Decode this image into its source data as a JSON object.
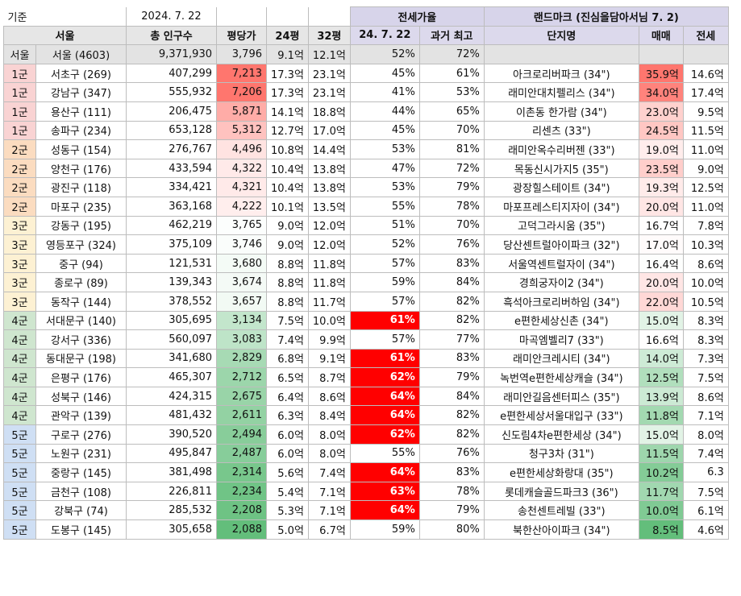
{
  "meta": {
    "top_label": "기준",
    "date": "2024. 7. 22",
    "jeonse_title": "전세가율",
    "landmark_title": "랜드마크 (진심을담아서님 7. 2)"
  },
  "headers": {
    "region": "서울",
    "households": "총 인구수",
    "price_per_pyeong": "평당가",
    "p24": "24평",
    "p32": "32평",
    "ratio_now": "24. 7. 22",
    "ratio_max": "과거 최고",
    "complex": "단지명",
    "sale": "매매",
    "jeonse": "전세"
  },
  "colors": {
    "grade_1": "#f9d3d3",
    "grade_2": "#fbdcc0",
    "grade_3": "#fdf1d3",
    "grade_4": "#cfe6cf",
    "grade_5": "#cfdff4",
    "highlight_red": "#ff0000"
  },
  "summary": {
    "grade": "서울",
    "region": "서울 (4603)",
    "population": "9,371,930",
    "price": "3,796",
    "p24": "9.1억",
    "p32": "12.1억",
    "ratio_now": "52%",
    "ratio_max": "72%"
  },
  "rows": [
    {
      "grade": "1군",
      "g": 1,
      "region": "서초구 (269)",
      "population": "407,299",
      "price": "7,213",
      "p24": "17.3억",
      "p32": "23.1억",
      "ratio_now": "45%",
      "ratio_max": "61%",
      "complex": "아크로리버파크 (34\")",
      "sale": "35.9억",
      "jeonse": "14.6억"
    },
    {
      "grade": "1군",
      "g": 1,
      "region": "강남구 (347)",
      "population": "555,932",
      "price": "7,206",
      "p24": "17.3억",
      "p32": "23.1억",
      "ratio_now": "41%",
      "ratio_max": "53%",
      "complex": "래미안대치펠리스 (34\")",
      "sale": "34.0억",
      "jeonse": "17.4억"
    },
    {
      "grade": "1군",
      "g": 1,
      "region": "용산구 (111)",
      "population": "206,475",
      "price": "5,871",
      "p24": "14.1억",
      "p32": "18.8억",
      "ratio_now": "44%",
      "ratio_max": "65%",
      "complex": "이촌동 한가람 (34\")",
      "sale": "23.0억",
      "jeonse": "9.5억"
    },
    {
      "grade": "1군",
      "g": 1,
      "region": "송파구 (234)",
      "population": "653,128",
      "price": "5,312",
      "p24": "12.7억",
      "p32": "17.0억",
      "ratio_now": "45%",
      "ratio_max": "70%",
      "complex": "리센츠 (33\")",
      "sale": "24.5억",
      "jeonse": "11.5억"
    },
    {
      "grade": "2군",
      "g": 2,
      "region": "성동구 (154)",
      "population": "276,767",
      "price": "4,496",
      "p24": "10.8억",
      "p32": "14.4억",
      "ratio_now": "53%",
      "ratio_max": "81%",
      "complex": "래미안옥수리버젠 (33\")",
      "sale": "19.0억",
      "jeonse": "11.0억"
    },
    {
      "grade": "2군",
      "g": 2,
      "region": "양천구 (176)",
      "population": "433,594",
      "price": "4,322",
      "p24": "10.4억",
      "p32": "13.8억",
      "ratio_now": "47%",
      "ratio_max": "72%",
      "complex": "목동신시가지5 (35\")",
      "sale": "23.5억",
      "jeonse": "9.0억"
    },
    {
      "grade": "2군",
      "g": 2,
      "region": "광진구 (118)",
      "population": "334,421",
      "price": "4,321",
      "p24": "10.4억",
      "p32": "13.8억",
      "ratio_now": "53%",
      "ratio_max": "79%",
      "complex": "광장힐스테이트 (34\")",
      "sale": "19.3억",
      "jeonse": "12.5억"
    },
    {
      "grade": "2군",
      "g": 2,
      "region": "마포구 (235)",
      "population": "363,168",
      "price": "4,222",
      "p24": "10.1억",
      "p32": "13.5억",
      "ratio_now": "55%",
      "ratio_max": "78%",
      "complex": "마포프레스티지자이 (34\")",
      "sale": "20.0억",
      "jeonse": "11.0억"
    },
    {
      "grade": "3군",
      "g": 3,
      "region": "강동구 (195)",
      "population": "462,219",
      "price": "3,765",
      "p24": "9.0억",
      "p32": "12.0억",
      "ratio_now": "51%",
      "ratio_max": "70%",
      "complex": "고덕그라시움 (35\")",
      "sale": "16.7억",
      "jeonse": "7.8억"
    },
    {
      "grade": "3군",
      "g": 3,
      "region": "영등포구 (324)",
      "population": "375,109",
      "price": "3,746",
      "p24": "9.0억",
      "p32": "12.0억",
      "ratio_now": "52%",
      "ratio_max": "76%",
      "complex": "당산센트럴아이파크 (32\")",
      "sale": "17.0억",
      "jeonse": "10.3억"
    },
    {
      "grade": "3군",
      "g": 3,
      "region": "중구 (94)",
      "population": "121,531",
      "price": "3,680",
      "p24": "8.8억",
      "p32": "11.8억",
      "ratio_now": "57%",
      "ratio_max": "83%",
      "complex": "서울역센트럴자이 (34\")",
      "sale": "16.4억",
      "jeonse": "8.6억"
    },
    {
      "grade": "3군",
      "g": 3,
      "region": "종로구 (89)",
      "population": "139,343",
      "price": "3,674",
      "p24": "8.8억",
      "p32": "11.8억",
      "ratio_now": "59%",
      "ratio_max": "84%",
      "complex": "경희궁자이2 (34\")",
      "sale": "20.0억",
      "jeonse": "10.0억"
    },
    {
      "grade": "3군",
      "g": 3,
      "region": "동작구 (144)",
      "population": "378,552",
      "price": "3,657",
      "p24": "8.8억",
      "p32": "11.7억",
      "ratio_now": "57%",
      "ratio_max": "82%",
      "complex": "흑석아크로리버하임 (34\")",
      "sale": "22.0억",
      "jeonse": "10.5억"
    },
    {
      "grade": "4군",
      "g": 4,
      "region": "서대문구 (140)",
      "population": "305,695",
      "price": "3,134",
      "p24": "7.5억",
      "p32": "10.0억",
      "ratio_now": "61%",
      "ratio_max": "82%",
      "complex": "e편한세상신촌 (34\")",
      "sale": "15.0억",
      "jeonse": "8.3억"
    },
    {
      "grade": "4군",
      "g": 4,
      "region": "강서구 (336)",
      "population": "560,097",
      "price": "3,083",
      "p24": "7.4억",
      "p32": "9.9억",
      "ratio_now": "57%",
      "ratio_max": "77%",
      "complex": "마곡엠벨리7 (33\")",
      "sale": "16.6억",
      "jeonse": "8.3억"
    },
    {
      "grade": "4군",
      "g": 4,
      "region": "동대문구 (198)",
      "population": "341,680",
      "price": "2,829",
      "p24": "6.8억",
      "p32": "9.1억",
      "ratio_now": "61%",
      "ratio_max": "83%",
      "complex": "래미안크레시티 (34\")",
      "sale": "14.0억",
      "jeonse": "7.3억"
    },
    {
      "grade": "4군",
      "g": 4,
      "region": "은평구 (176)",
      "population": "465,307",
      "price": "2,712",
      "p24": "6.5억",
      "p32": "8.7억",
      "ratio_now": "62%",
      "ratio_max": "79%",
      "complex": "녹번역e편한세상캐슬 (34\")",
      "sale": "12.5억",
      "jeonse": "7.5억"
    },
    {
      "grade": "4군",
      "g": 4,
      "region": "성북구 (146)",
      "population": "424,315",
      "price": "2,675",
      "p24": "6.4억",
      "p32": "8.6억",
      "ratio_now": "64%",
      "ratio_max": "84%",
      "complex": "래미안길음센터피스 (35\")",
      "sale": "13.9억",
      "jeonse": "8.6억"
    },
    {
      "grade": "4군",
      "g": 4,
      "region": "관악구 (139)",
      "population": "481,432",
      "price": "2,611",
      "p24": "6.3억",
      "p32": "8.4억",
      "ratio_now": "64%",
      "ratio_max": "82%",
      "complex": "e편한세상서울대입구 (33\")",
      "sale": "11.8억",
      "jeonse": "7.1억"
    },
    {
      "grade": "5군",
      "g": 5,
      "region": "구로구 (276)",
      "population": "390,520",
      "price": "2,494",
      "p24": "6.0억",
      "p32": "8.0억",
      "ratio_now": "62%",
      "ratio_max": "82%",
      "complex": "신도림4차e편한세상 (34\")",
      "sale": "15.0억",
      "jeonse": "8.0억"
    },
    {
      "grade": "5군",
      "g": 5,
      "region": "노원구 (231)",
      "population": "495,847",
      "price": "2,487",
      "p24": "6.0억",
      "p32": "8.0억",
      "ratio_now": "55%",
      "ratio_max": "76%",
      "complex": "청구3차 (31\")",
      "sale": "11.5억",
      "jeonse": "7.4억"
    },
    {
      "grade": "5군",
      "g": 5,
      "region": "중랑구 (145)",
      "population": "381,498",
      "price": "2,314",
      "p24": "5.6억",
      "p32": "7.4억",
      "ratio_now": "64%",
      "ratio_max": "83%",
      "complex": "e편한세상화랑대 (35\")",
      "sale": "10.2억",
      "jeonse": "6.3"
    },
    {
      "grade": "5군",
      "g": 5,
      "region": "금천구 (108)",
      "population": "226,811",
      "price": "2,234",
      "p24": "5.4억",
      "p32": "7.1억",
      "ratio_now": "63%",
      "ratio_max": "78%",
      "complex": "롯데캐슬골드파크3 (36\")",
      "sale": "11.7억",
      "jeonse": "7.5억"
    },
    {
      "grade": "5군",
      "g": 5,
      "region": "강북구 (74)",
      "population": "285,532",
      "price": "2,208",
      "p24": "5.3억",
      "p32": "7.1억",
      "ratio_now": "64%",
      "ratio_max": "79%",
      "complex": "송천센트레빌 (33\")",
      "sale": "10.0억",
      "jeonse": "6.1억"
    },
    {
      "grade": "5군",
      "g": 5,
      "region": "도봉구 (145)",
      "population": "305,658",
      "price": "2,088",
      "p24": "5.0억",
      "p32": "6.7억",
      "ratio_now": "59%",
      "ratio_max": "80%",
      "complex": "북한산아이파크 (34\")",
      "sale": "8.5억",
      "jeonse": "4.6억"
    }
  ]
}
